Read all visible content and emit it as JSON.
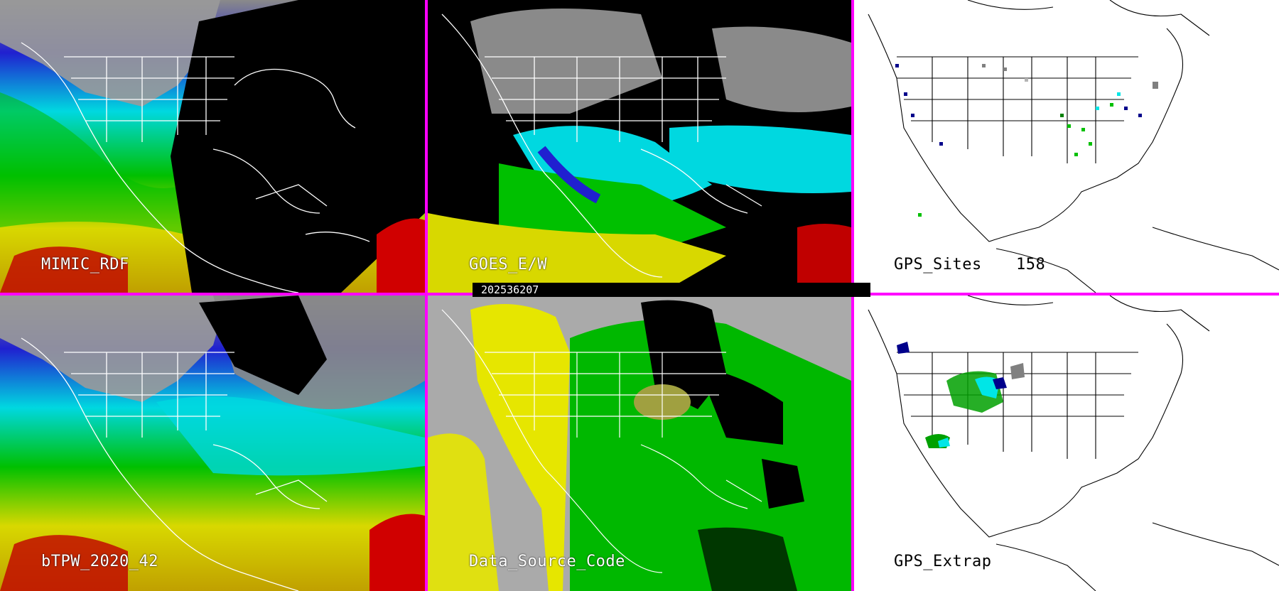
{
  "panels": {
    "mimic": {
      "label": "MIMIC_RDF"
    },
    "goes": {
      "label": "GOES_E/W"
    },
    "gps_sites": {
      "label": "GPS_Sites",
      "count": "158"
    },
    "btpw": {
      "label": "bTPW_2020_42"
    },
    "data_source": {
      "label": "Data_Source_Code"
    },
    "gps_extrap": {
      "label": "GPS_Extrap"
    }
  },
  "timestamp": "202536207",
  "colors": {
    "divider": "#ff00ff",
    "red": "#d00000",
    "yellow": "#e6e600",
    "green": "#00c000",
    "cyan": "#00e6e6",
    "blue": "#0000c0",
    "gray": "#b4b4b4",
    "black": "#000000",
    "white": "#ffffff",
    "data_source_yellow": "#e6e600",
    "data_source_gray": "#aaaaaa",
    "data_source_green": "#00b800"
  }
}
